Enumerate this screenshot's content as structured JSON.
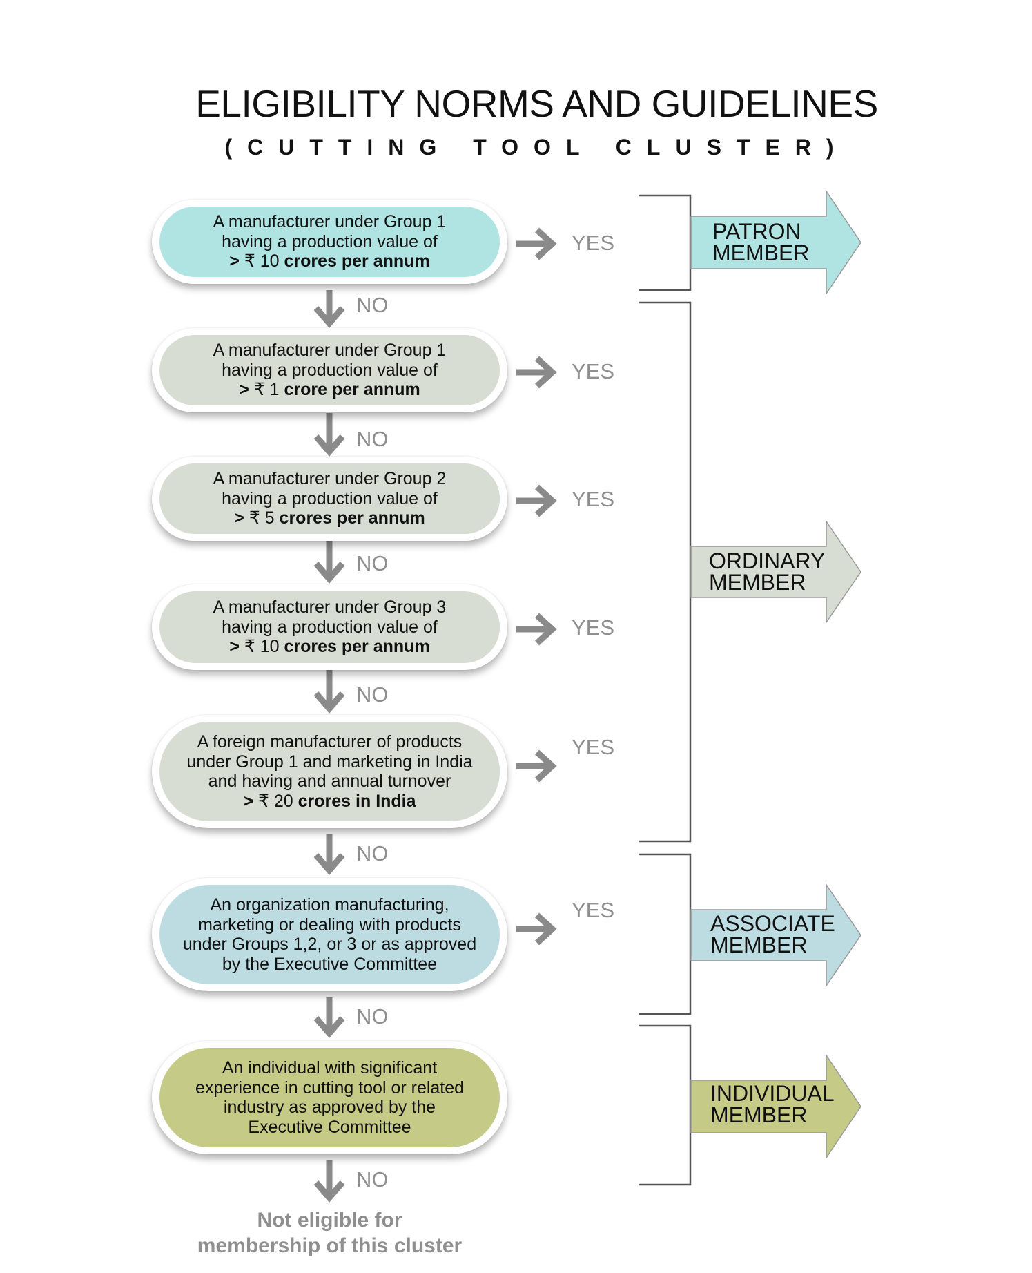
{
  "header": {
    "title": "ELIGIBILITY NORMS AND GUIDELINES",
    "subtitle": "(CUTTING TOOL CLUSTER)"
  },
  "steps": [
    {
      "lines": [
        "A manufacturer under Group 1",
        "having a production value of"
      ],
      "bold_prefix": ">",
      "rupee": "₹ 10",
      "bold_suffix": "crores per annum",
      "yes": "YES",
      "no": "NO",
      "color": "#b0e4e3"
    },
    {
      "lines": [
        "A manufacturer under Group 1",
        "having a production value of"
      ],
      "bold_prefix": ">",
      "rupee": "₹ 1",
      "bold_suffix": "crore per annum",
      "yes": "YES",
      "no": "NO",
      "color": "#d7ddd2"
    },
    {
      "lines": [
        "A manufacturer under Group 2",
        "having a production value of"
      ],
      "bold_prefix": ">",
      "rupee": "₹ 5",
      "bold_suffix": "crores per annum",
      "yes": "YES",
      "no": "NO",
      "color": "#d7ddd2"
    },
    {
      "lines": [
        "A manufacturer under Group 3",
        "having a production value of"
      ],
      "bold_prefix": ">",
      "rupee": "₹ 10",
      "bold_suffix": "crores per annum",
      "yes": "YES",
      "no": "NO",
      "color": "#d7ddd2"
    },
    {
      "lines": [
        "A foreign manufacturer of products",
        "under Group 1 and marketing in India",
        "and having and annual turnover"
      ],
      "bold_prefix": ">",
      "rupee": "₹ 20",
      "bold_suffix": "crores in India",
      "yes": "YES",
      "no": "NO",
      "color": "#d7ddd2"
    },
    {
      "lines": [
        "An organization manufacturing,",
        "marketing or dealing with products",
        "under Groups 1,2, or 3 or as approved",
        "by the Executive Committee"
      ],
      "yes": "YES",
      "no": "NO",
      "color": "#bcdce1"
    },
    {
      "lines": [
        "An individual with significant",
        "experience in cutting tool or related",
        "industry as approved by the",
        "Executive Committee"
      ],
      "no": "NO",
      "color": "#c5cb86"
    }
  ],
  "memberships": [
    {
      "line1": "PATRON",
      "line2": "MEMBER",
      "color": "#b0e4e3"
    },
    {
      "line1": "ORDINARY",
      "line2": "MEMBER",
      "color": "#d7ddd2"
    },
    {
      "line1": "ASSOCIATE",
      "line2": "MEMBER",
      "color": "#bcdce1"
    },
    {
      "line1": "INDIVIDUAL",
      "line2": "MEMBER",
      "color": "#c5cb86"
    }
  ],
  "not_eligible": {
    "line1": "Not eligible for",
    "line2": "membership of this cluster"
  },
  "colors": {
    "arrow_gray": "#8a8a8a",
    "label_gray": "#8f8f8f",
    "bracket": "#555555"
  }
}
